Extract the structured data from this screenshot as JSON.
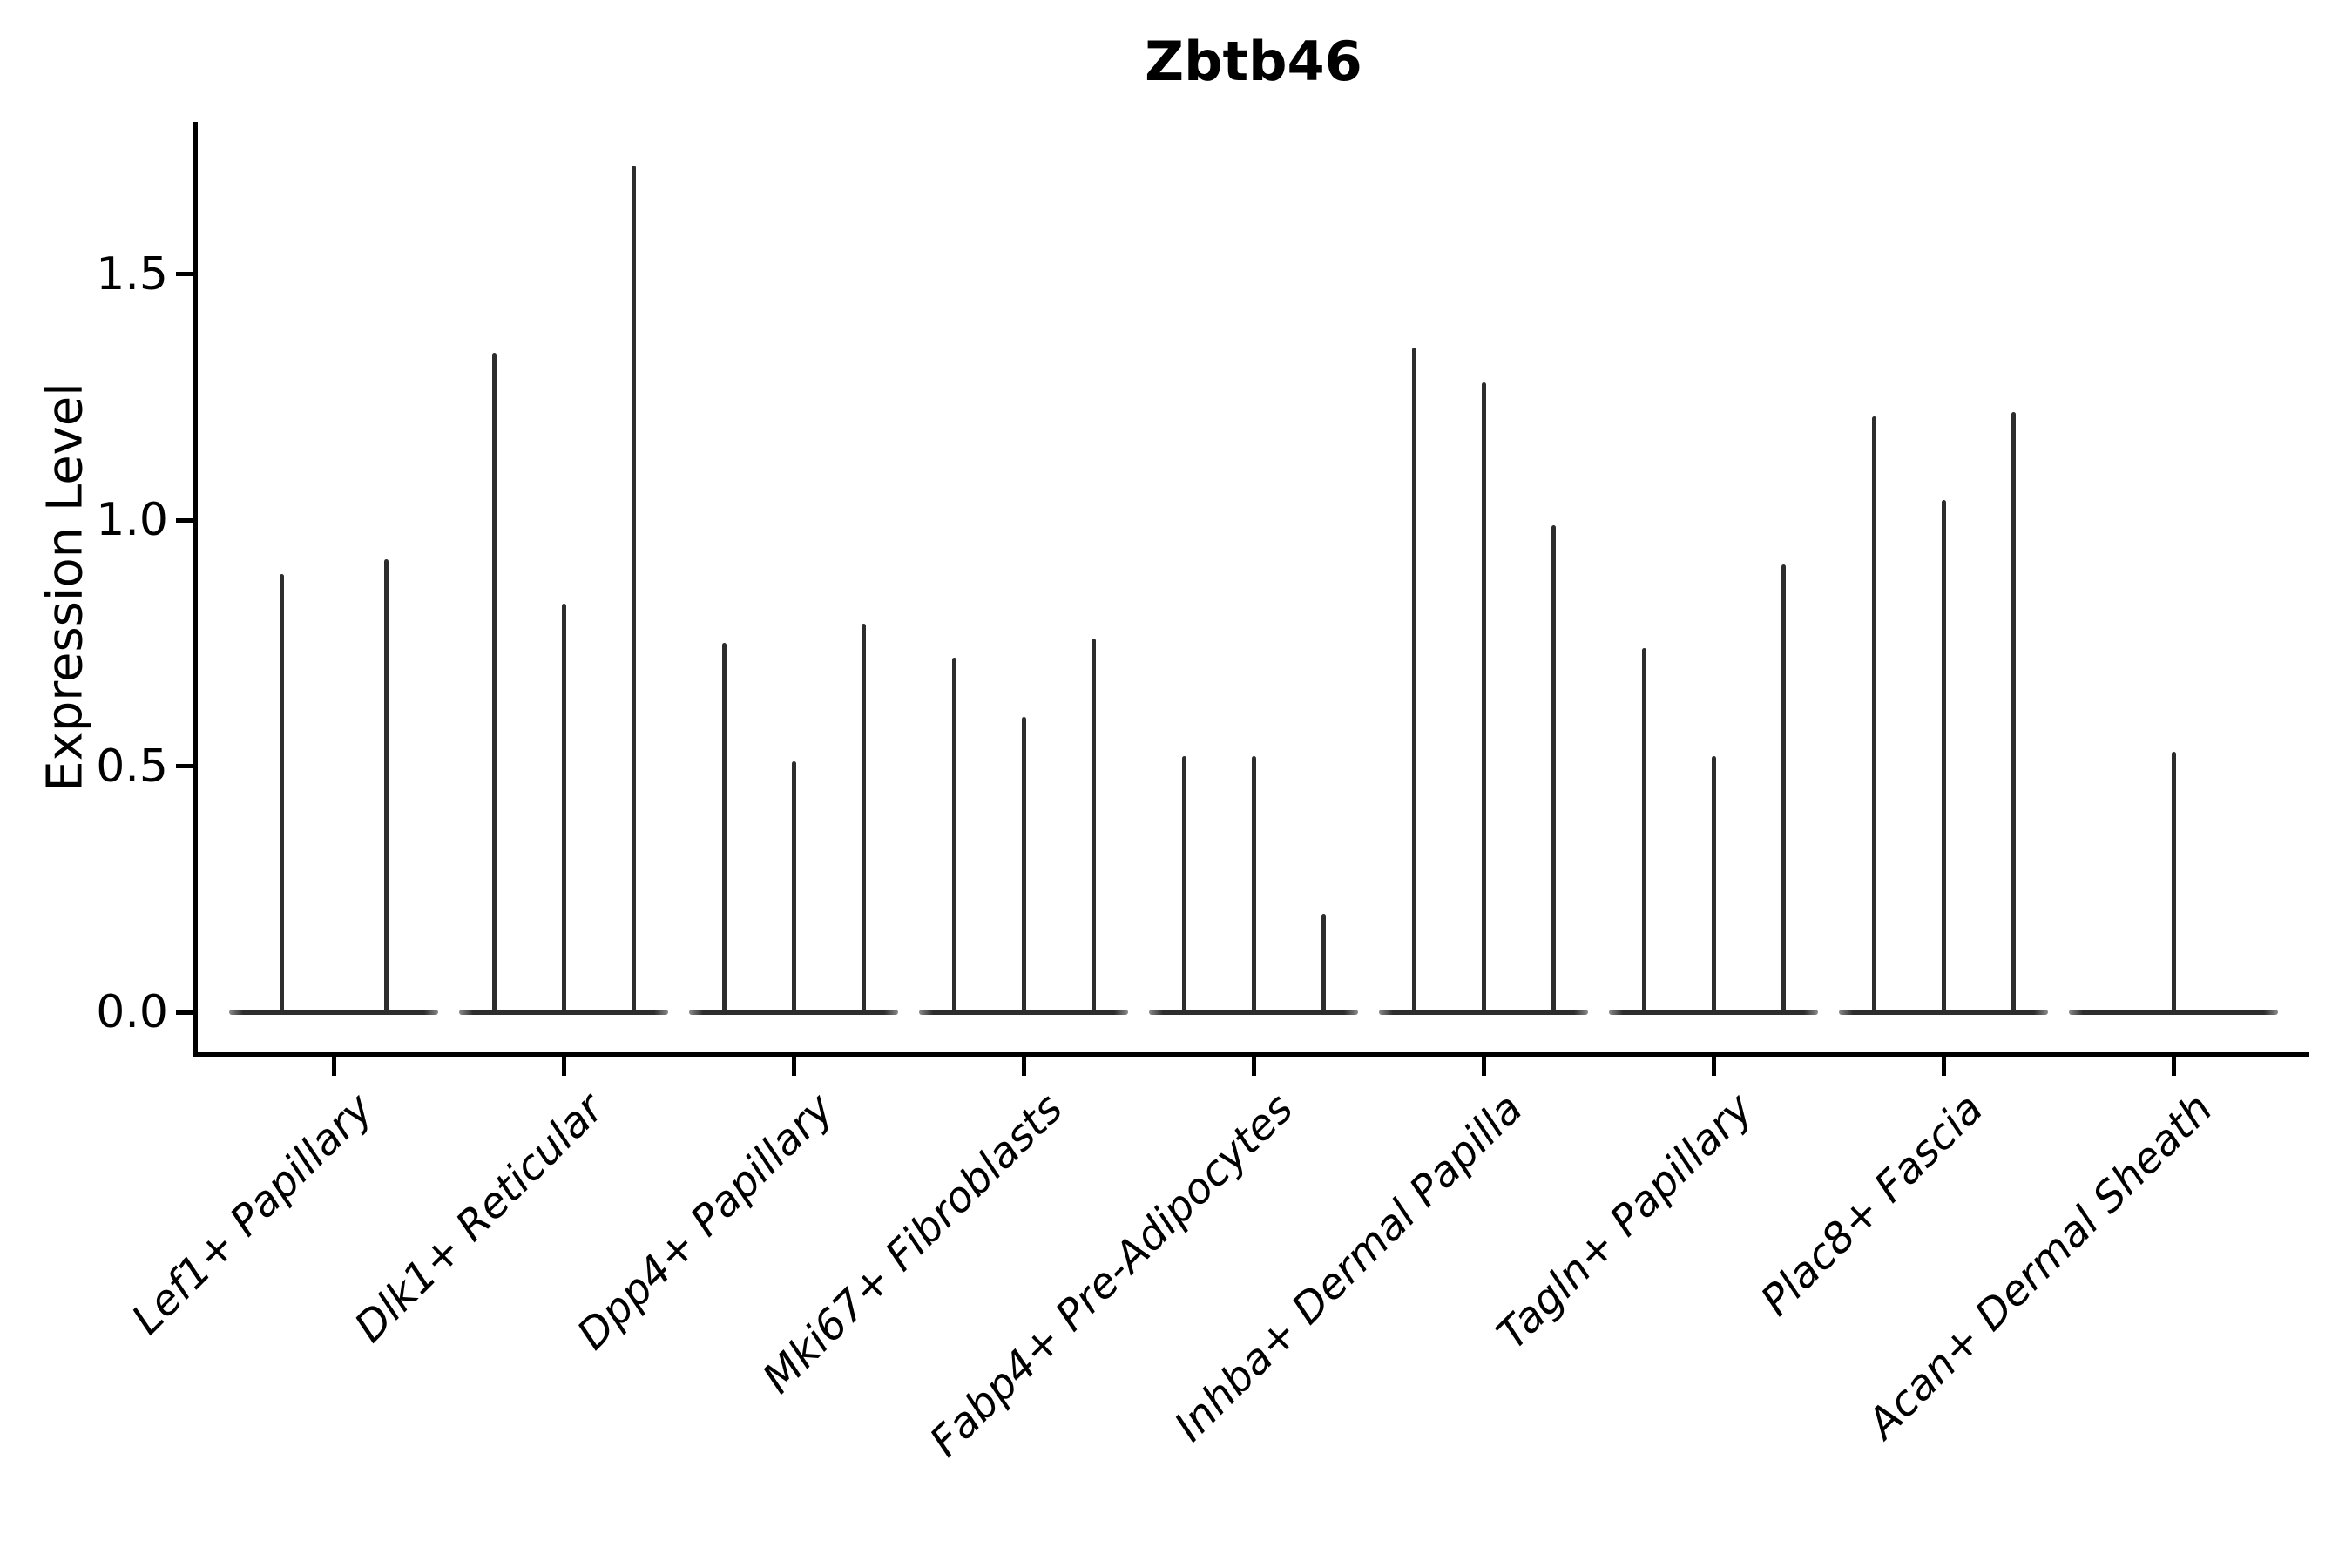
{
  "chart_data": {
    "type": "violin",
    "title": "Zbtb46",
    "ylabel": "Expression Level",
    "xlabel": "",
    "ylim": [
      0,
      1.81
    ],
    "ytick_values": [
      0.0,
      0.5,
      1.0,
      1.5
    ],
    "ytick_labels": [
      "0.0",
      "0.5",
      "1.0",
      "1.5"
    ],
    "grid": false,
    "legend": "none",
    "categories": [
      "Lef1+ Papillary",
      "Dlk1+ Reticular",
      "Dpp4+ Papillary",
      "Mki67+ Fibroblasts",
      "Fabp4+ Pre-Adipocytes",
      "Inhba+ Dermal Papilla",
      "Tagln+ Papillary",
      "Plac8+ Fascia",
      "Acan+ Dermal Sheath"
    ],
    "groups": [
      {
        "category": "Lef1+ Papillary",
        "violin_max_values": [
          0.89,
          0.92
        ]
      },
      {
        "category": "Dlk1+ Reticular",
        "violin_max_values": [
          1.34,
          0.83,
          1.72
        ]
      },
      {
        "category": "Dpp4+ Papillary",
        "violin_max_values": [
          0.75,
          0.51,
          0.79
        ]
      },
      {
        "category": "Mki67+ Fibroblasts",
        "violin_max_values": [
          0.72,
          0.6,
          0.76
        ]
      },
      {
        "category": "Fabp4+ Pre-Adipocytes",
        "violin_max_values": [
          0.52,
          0.52,
          0.2
        ]
      },
      {
        "category": "Inhba+ Dermal Papilla",
        "violin_max_values": [
          1.35,
          1.28,
          0.99
        ]
      },
      {
        "category": "Tagln+ Papillary",
        "violin_max_values": [
          0.74,
          0.52,
          0.91
        ]
      },
      {
        "category": "Plac8+ Fascia",
        "violin_max_values": [
          1.21,
          1.04,
          1.22
        ]
      },
      {
        "category": "Acan+ Dermal Sheath",
        "violin_max_values": [
          0.53
        ]
      }
    ],
    "colors": {
      "spike": "#2d2d2d",
      "axis": "#000000",
      "text": "#000000",
      "background": "#ffffff"
    }
  }
}
